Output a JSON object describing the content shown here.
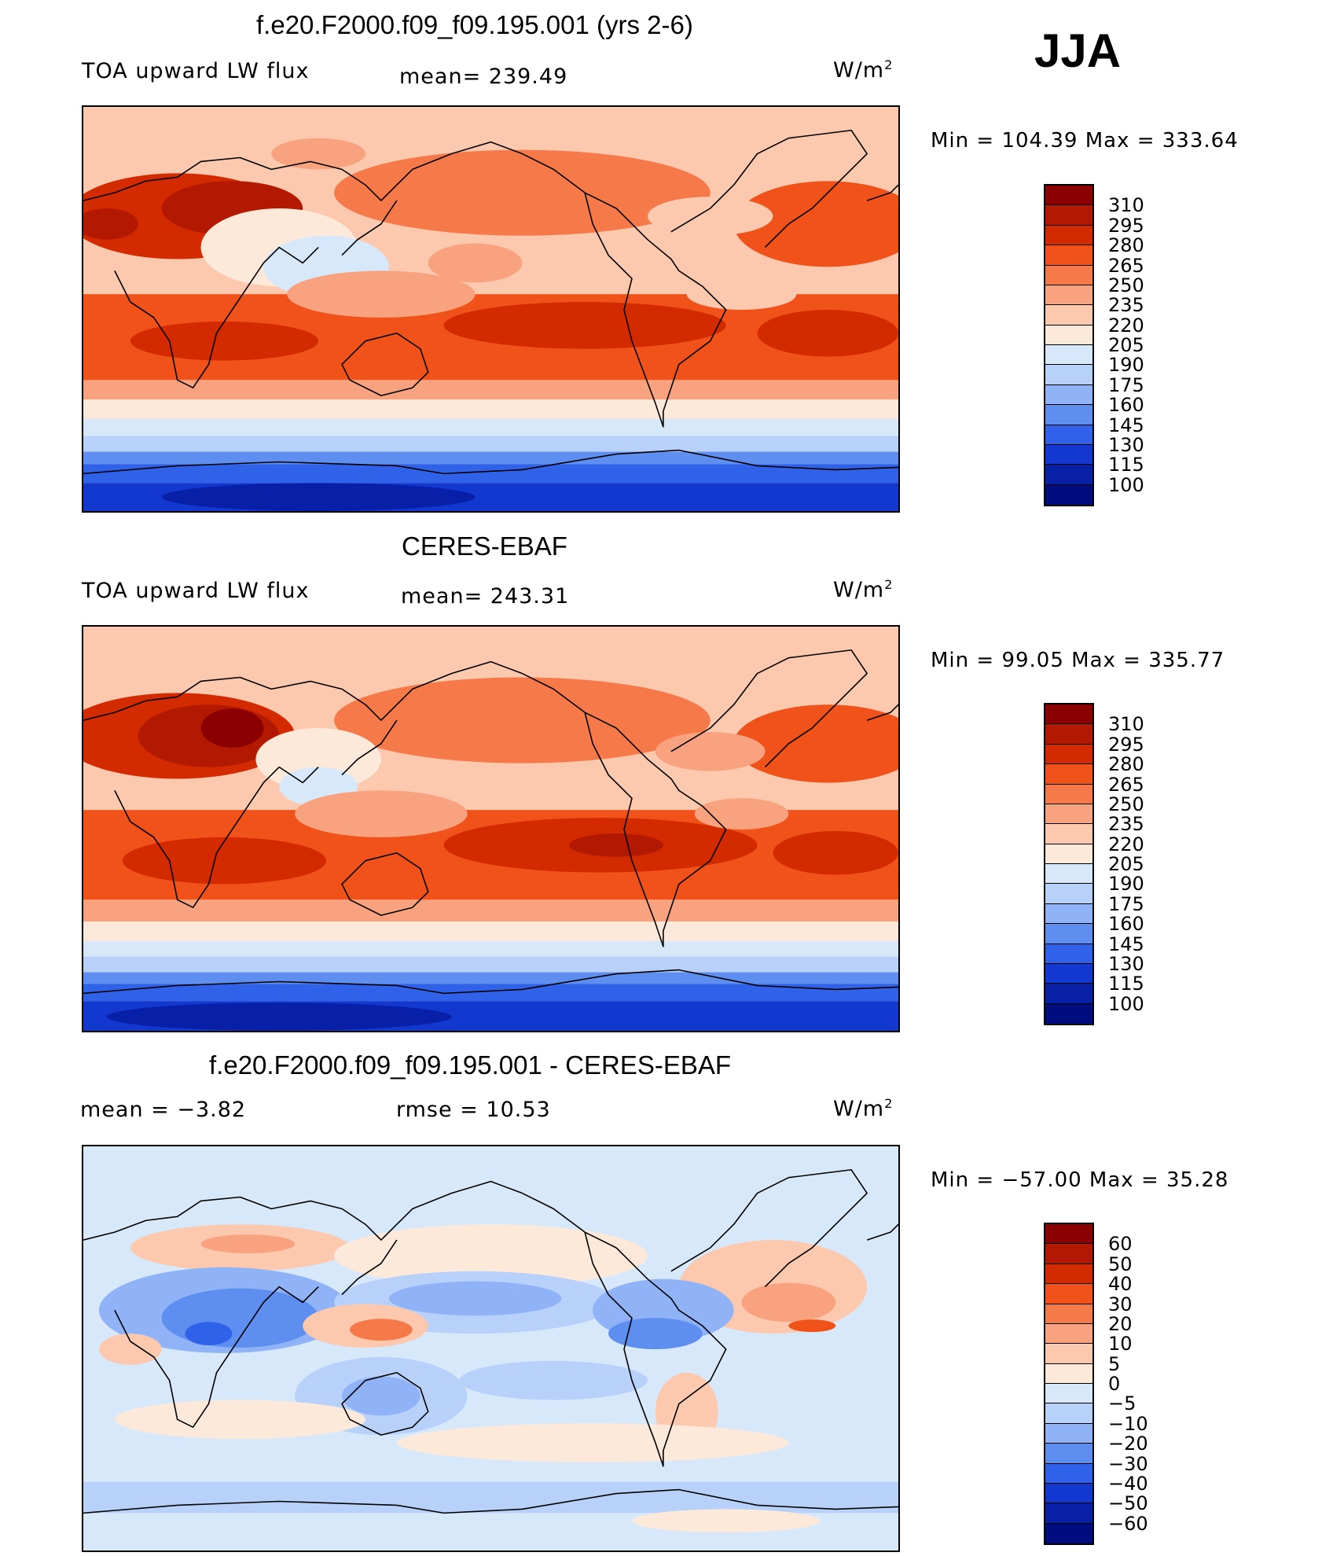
{
  "season": "JJA",
  "units_base": "W/m",
  "units_exp": "2",
  "panels": [
    {
      "id": "model",
      "title": "f.e20.F2000.f09_f09.195.001 (yrs 2-6)",
      "variable": "TOA upward LW flux",
      "left_label": "TOA upward LW flux",
      "mean_label": "mean= 239.49",
      "minmax": "Min  =  104.39  Max  =  333.64",
      "colorbar_labels": [
        "310",
        "295",
        "280",
        "265",
        "250",
        "235",
        "220",
        "205",
        "190",
        "175",
        "160",
        "145",
        "130",
        "115",
        "100"
      ],
      "colors": [
        "#8b0000",
        "#b31800",
        "#d42a00",
        "#f0521a",
        "#f6794a",
        "#f9a27f",
        "#fcc8ae",
        "#fde9da",
        "#d8e8fb",
        "#b8d1fa",
        "#8fb3f6",
        "#5e8ef0",
        "#2f62e8",
        "#1338d0",
        "#0820a8",
        "#000c80"
      ]
    },
    {
      "id": "obs",
      "title": "CERES-EBAF",
      "variable": "TOA upward LW flux",
      "left_label": "TOA upward LW flux",
      "mean_label": "mean= 243.31",
      "minmax": "Min  =   99.05  Max  =  335.77",
      "colorbar_labels": [
        "310",
        "295",
        "280",
        "265",
        "250",
        "235",
        "220",
        "205",
        "190",
        "175",
        "160",
        "145",
        "130",
        "115",
        "100"
      ],
      "colors": [
        "#8b0000",
        "#b31800",
        "#d42a00",
        "#f0521a",
        "#f6794a",
        "#f9a27f",
        "#fcc8ae",
        "#fde9da",
        "#d8e8fb",
        "#b8d1fa",
        "#8fb3f6",
        "#5e8ef0",
        "#2f62e8",
        "#1338d0",
        "#0820a8",
        "#000c80"
      ]
    },
    {
      "id": "diff",
      "title": "f.e20.F2000.f09_f09.195.001 - CERES-EBAF",
      "left_label": "mean  =   −3.82",
      "mean_label": "rmse  =    10.53",
      "minmax": "Min  =  −57.00  Max  =    35.28",
      "colorbar_labels": [
        "60",
        "50",
        "40",
        "30",
        "20",
        "10",
        "5",
        "0",
        "−5",
        "−10",
        "−20",
        "−30",
        "−40",
        "−50",
        "−60"
      ],
      "colors": [
        "#8b0000",
        "#b31800",
        "#d42a00",
        "#f0521a",
        "#f6794a",
        "#f9a27f",
        "#fcc8ae",
        "#fde9da",
        "#d8e8fb",
        "#b8d1fa",
        "#8fb3f6",
        "#5e8ef0",
        "#2f62e8",
        "#1338d0",
        "#0820a8",
        "#000c80"
      ]
    }
  ]
}
